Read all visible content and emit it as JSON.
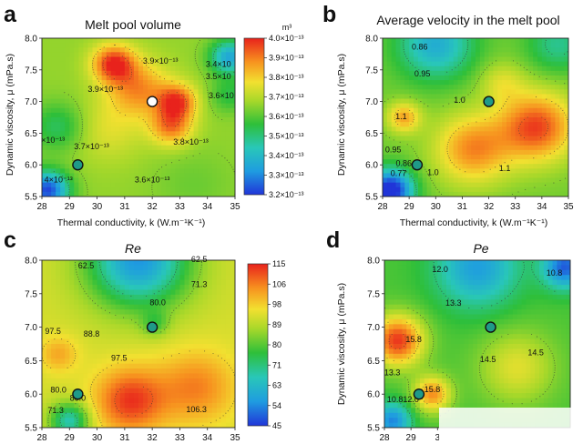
{
  "chart_data": [
    {
      "panel": "a",
      "type": "heatmap",
      "title": "Melt pool volume",
      "xlabel": "Thermal conductivity, k (W.m⁻¹K⁻¹)",
      "ylabel": "Dynamic viscosity, μ (mPa.s)",
      "xlim": [
        28,
        35
      ],
      "ylim": [
        5.5,
        8.0
      ],
      "xticks": [
        "28",
        "29",
        "30",
        "31",
        "32",
        "33",
        "34",
        "35"
      ],
      "yticks": [
        "5.5",
        "6.0",
        "6.5",
        "7.0",
        "7.5",
        "8.0"
      ],
      "colorbar": {
        "unit": "m³",
        "range": [
          3.2e-13,
          4e-13
        ],
        "labels": [
          "4.0×10⁻¹³",
          "3.9×10⁻¹³",
          "3.8×10⁻¹³",
          "3.7×10⁻¹³",
          "3.6×10⁻¹³",
          "3.5×10⁻¹³",
          "3.4×10⁻¹³",
          "3.3×10⁻¹³",
          "3.2×10⁻¹³"
        ]
      },
      "contour_labels": [
        {
          "text": "3.9×10⁻¹³",
          "x": 30.3,
          "y": 7.15
        },
        {
          "text": "3.9×10⁻¹³",
          "x": 32.3,
          "y": 7.6
        },
        {
          "text": "3.4×10",
          "x": 34.4,
          "y": 7.55
        },
        {
          "text": "3.5×10",
          "x": 34.4,
          "y": 7.35
        },
        {
          "text": "3.6×10",
          "x": 34.5,
          "y": 7.05
        },
        {
          "text": "×10⁻¹³",
          "x": 28.4,
          "y": 6.35
        },
        {
          "text": "3.7×10⁻¹³",
          "x": 29.8,
          "y": 6.25
        },
        {
          "text": "3.8×10⁻¹³",
          "x": 33.4,
          "y": 6.32
        },
        {
          "text": "3.6×10⁻¹³",
          "x": 32.0,
          "y": 5.72
        },
        {
          "text": "4×10⁻¹³",
          "x": 28.6,
          "y": 5.72
        }
      ],
      "markers": [
        {
          "x": 29.3,
          "y": 6.0,
          "color": "#1f9a88"
        },
        {
          "x": 32.0,
          "y": 7.0,
          "color": "#ffffff"
        }
      ],
      "peaks": [
        {
          "x": 30.6,
          "y": 7.6,
          "v": 3.98e-13,
          "s": 0.55
        },
        {
          "x": 32.9,
          "y": 7.0,
          "v": 3.95e-13,
          "s": 0.5
        },
        {
          "x": 32.7,
          "y": 6.6,
          "v": 3.9e-13,
          "s": 0.55
        },
        {
          "x": 31.5,
          "y": 7.2,
          "v": 3.88e-13,
          "s": 0.8
        },
        {
          "x": 30.4,
          "y": 6.55,
          "v": 3.75e-13,
          "s": 0.9
        },
        {
          "x": 28.2,
          "y": 5.6,
          "v": 3.22e-13,
          "s": 0.55
        },
        {
          "x": 28.6,
          "y": 6.6,
          "v": 3.52e-13,
          "s": 0.7
        },
        {
          "x": 34.8,
          "y": 7.7,
          "v": 3.35e-13,
          "s": 0.5
        },
        {
          "x": 34.8,
          "y": 7.1,
          "v": 3.55e-13,
          "s": 0.5
        },
        {
          "x": 33.5,
          "y": 5.7,
          "v": 3.62e-13,
          "s": 1.0
        }
      ],
      "base": 3.66e-13
    },
    {
      "panel": "b",
      "type": "heatmap",
      "title": "Average velocity in the melt pool",
      "xlabel": "Thermal conductivity, k (W.m⁻¹K⁻¹)",
      "ylabel": "Dynamic viscosity, μ (mPa.s)",
      "xlim": [
        28,
        35
      ],
      "ylim": [
        5.5,
        8.0
      ],
      "xticks": [
        "28",
        "29",
        "30",
        "31",
        "32",
        "33",
        "34",
        "35"
      ],
      "yticks": [
        "5.5",
        "6.0",
        "6.5",
        "7.0",
        "7.5",
        "8.0"
      ],
      "contour_labels": [
        {
          "text": "0.86",
          "x": 29.4,
          "y": 7.82
        },
        {
          "text": "0.95",
          "x": 29.5,
          "y": 7.4
        },
        {
          "text": "1.0",
          "x": 30.9,
          "y": 6.98
        },
        {
          "text": "1.1",
          "x": 28.7,
          "y": 6.72
        },
        {
          "text": "0.95",
          "x": 28.4,
          "y": 6.2
        },
        {
          "text": "0.86",
          "x": 28.8,
          "y": 5.98
        },
        {
          "text": "0.77",
          "x": 28.6,
          "y": 5.82
        },
        {
          "text": "1.0",
          "x": 29.9,
          "y": 5.84
        },
        {
          "text": "1.1",
          "x": 32.6,
          "y": 5.9
        }
      ],
      "markers": [
        {
          "x": 29.3,
          "y": 6.0,
          "color": "#1f9a88"
        },
        {
          "x": 32.0,
          "y": 7.0,
          "color": "#1f9a88"
        }
      ],
      "peaks": [
        {
          "x": 33.8,
          "y": 6.6,
          "v": 1.16,
          "s": 1.0
        },
        {
          "x": 31.4,
          "y": 6.25,
          "v": 1.12,
          "s": 1.0
        },
        {
          "x": 28.8,
          "y": 6.75,
          "v": 1.1,
          "s": 0.45
        },
        {
          "x": 32.5,
          "y": 7.3,
          "v": 1.04,
          "s": 0.6
        },
        {
          "x": 28.3,
          "y": 5.6,
          "v": 0.72,
          "s": 0.6
        },
        {
          "x": 30.0,
          "y": 7.9,
          "v": 0.84,
          "s": 1.0
        },
        {
          "x": 34.6,
          "y": 7.9,
          "v": 0.9,
          "s": 0.8
        }
      ],
      "base": 0.98,
      "range": [
        0.75,
        1.18
      ]
    },
    {
      "panel": "c",
      "type": "heatmap",
      "title": "Re",
      "xlim": [
        28,
        35
      ],
      "ylim": [
        5.5,
        8.0
      ],
      "xticks": [
        "28",
        "29",
        "30",
        "31",
        "32",
        "33",
        "34",
        "35"
      ],
      "yticks": [
        "5.5",
        "6.0",
        "6.5",
        "7.0",
        "7.5",
        "8.0"
      ],
      "colorbar": {
        "range": [
          45,
          115
        ],
        "labels": [
          "115",
          "106",
          "98",
          "89",
          "80",
          "71",
          "63",
          "54",
          "45"
        ]
      },
      "contour_labels": [
        {
          "text": "62.5",
          "x": 29.6,
          "y": 7.88
        },
        {
          "text": "62.5",
          "x": 33.7,
          "y": 7.97
        },
        {
          "text": "71.3",
          "x": 33.7,
          "y": 7.6
        },
        {
          "text": "80.0",
          "x": 32.2,
          "y": 7.33
        },
        {
          "text": "97.5",
          "x": 28.4,
          "y": 6.9
        },
        {
          "text": "88.8",
          "x": 29.8,
          "y": 6.86
        },
        {
          "text": "97.5",
          "x": 30.8,
          "y": 6.5
        },
        {
          "text": "80.0",
          "x": 28.6,
          "y": 6.02
        },
        {
          "text": "80.0",
          "x": 29.3,
          "y": 5.9
        },
        {
          "text": "71.3",
          "x": 28.5,
          "y": 5.72
        },
        {
          "text": "106.3",
          "x": 33.6,
          "y": 5.73
        }
      ],
      "markers": [
        {
          "x": 29.3,
          "y": 6.0,
          "color": "#1f9a88"
        },
        {
          "x": 32.0,
          "y": 7.0,
          "color": "#1f9a88"
        }
      ],
      "peaks": [
        {
          "x": 31.2,
          "y": 5.9,
          "v": 113,
          "s": 0.9
        },
        {
          "x": 33.6,
          "y": 6.1,
          "v": 106,
          "s": 1.0
        },
        {
          "x": 28.6,
          "y": 6.6,
          "v": 102,
          "s": 0.5
        },
        {
          "x": 29.0,
          "y": 5.6,
          "v": 66,
          "s": 0.5
        },
        {
          "x": 31.5,
          "y": 8.0,
          "v": 55,
          "s": 1.3
        },
        {
          "x": 32.1,
          "y": 7.05,
          "v": 82,
          "s": 0.35
        }
      ],
      "base": 92
    },
    {
      "panel": "d",
      "type": "heatmap",
      "title": "Pe",
      "ylabel": "Dynamic viscosity, μ (mPa.s)",
      "xlim": [
        28,
        35
      ],
      "ylim": [
        5.5,
        8.0
      ],
      "xticks": [
        "28",
        "29",
        "3"
      ],
      "yticks": [
        "5.5",
        "6.0",
        "6.5",
        "7.0",
        "7.5",
        "8.0"
      ],
      "contour_labels": [
        {
          "text": "12.0",
          "x": 30.1,
          "y": 7.82
        },
        {
          "text": "10.8",
          "x": 34.4,
          "y": 7.77
        },
        {
          "text": "13.3",
          "x": 30.6,
          "y": 7.32
        },
        {
          "text": "15.8",
          "x": 29.1,
          "y": 6.78
        },
        {
          "text": "14.5",
          "x": 31.9,
          "y": 6.48
        },
        {
          "text": "14.5",
          "x": 33.7,
          "y": 6.58
        },
        {
          "text": "13.3",
          "x": 28.3,
          "y": 6.28
        },
        {
          "text": "15.8",
          "x": 29.8,
          "y": 6.03
        },
        {
          "text": "10.8",
          "x": 28.4,
          "y": 5.88
        },
        {
          "text": "12.0",
          "x": 29.0,
          "y": 5.88
        }
      ],
      "markers": [
        {
          "x": 29.3,
          "y": 6.0,
          "color": "#1f9a88"
        },
        {
          "x": 32.0,
          "y": 7.0,
          "color": "#1f9a88"
        }
      ],
      "peaks": [
        {
          "x": 28.5,
          "y": 6.8,
          "v": 16.8,
          "s": 0.7
        },
        {
          "x": 29.8,
          "y": 6.0,
          "v": 16.0,
          "s": 0.5
        },
        {
          "x": 33.0,
          "y": 6.4,
          "v": 14.9,
          "s": 1.0
        },
        {
          "x": 31.5,
          "y": 7.9,
          "v": 11.3,
          "s": 1.1
        },
        {
          "x": 34.8,
          "y": 7.9,
          "v": 10.6,
          "s": 0.6
        },
        {
          "x": 28.3,
          "y": 5.6,
          "v": 11.0,
          "s": 0.5
        }
      ],
      "base": 13.5,
      "range": [
        10.2,
        17.0
      ]
    }
  ]
}
